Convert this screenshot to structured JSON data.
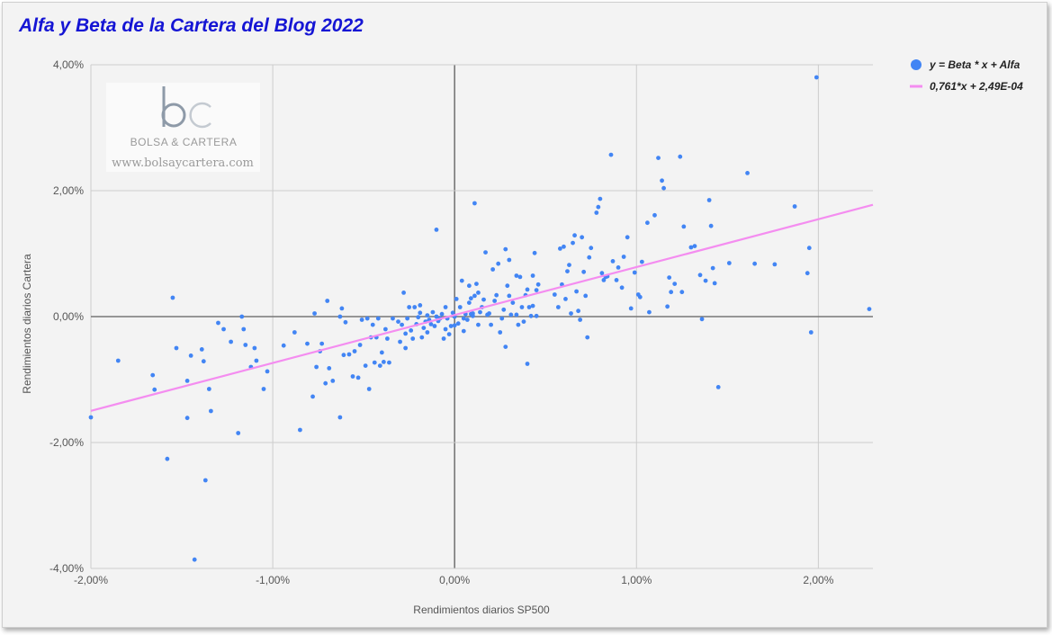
{
  "title": "Alfa y Beta de la Cartera del Blog 2022",
  "watermark": {
    "name": "BOLSA & CARTERA",
    "url": "www.bolsaycartera.com"
  },
  "colors": {
    "title": "#1515d4",
    "points": "#4285f4",
    "trendline": "#f48df0",
    "grid": "#cccccc",
    "zero_axis": "#777777",
    "background": "#f3f3f3"
  },
  "chart_data": {
    "type": "scatter",
    "xlabel": "Rendimientos diarios SP500",
    "ylabel": "Rendimientos diarios Cartera",
    "xlim": [
      -0.02,
      0.023
    ],
    "ylim": [
      -0.04,
      0.04
    ],
    "x_ticks": [
      -0.02,
      -0.01,
      0,
      0.01,
      0.02
    ],
    "x_tick_labels": [
      "-2,00%",
      "-1,00%",
      "0,00%",
      "1,00%",
      "2,00%"
    ],
    "y_ticks": [
      -0.04,
      -0.02,
      0,
      0.02,
      0.04
    ],
    "y_tick_labels": [
      "-4,00%",
      "-2,00%",
      "0,00%",
      "2,00%",
      "4,00%"
    ],
    "grid": true,
    "legend_position": "top-right",
    "series": [
      {
        "name": "y = Beta * x + Alfa",
        "points": [
          [
            -0.02,
            -0.016
          ],
          [
            -0.0185,
            -0.007
          ],
          [
            -0.0166,
            -0.0093
          ],
          [
            -0.0165,
            -0.0116
          ],
          [
            -0.0158,
            -0.0226
          ],
          [
            -0.0155,
            0.003
          ],
          [
            -0.0153,
            -0.005
          ],
          [
            -0.0147,
            -0.0161
          ],
          [
            -0.0147,
            -0.0102
          ],
          [
            -0.0145,
            -0.0062
          ],
          [
            -0.0143,
            -0.0386
          ],
          [
            -0.0139,
            -0.0052
          ],
          [
            -0.0138,
            -0.0071
          ],
          [
            -0.0137,
            -0.026
          ],
          [
            -0.0135,
            -0.0115
          ],
          [
            -0.0134,
            -0.015
          ],
          [
            -0.013,
            -0.001
          ],
          [
            -0.0127,
            -0.002
          ],
          [
            -0.0123,
            -0.004
          ],
          [
            -0.0119,
            -0.0185
          ],
          [
            -0.0117,
            0.0
          ],
          [
            -0.0116,
            -0.002
          ],
          [
            -0.0115,
            -0.0045
          ],
          [
            -0.0112,
            -0.008
          ],
          [
            -0.011,
            -0.005
          ],
          [
            -0.0109,
            -0.007
          ],
          [
            -0.0105,
            -0.0115
          ],
          [
            -0.0103,
            -0.0087
          ],
          [
            -0.0094,
            -0.0046
          ],
          [
            -0.0088,
            -0.0025
          ],
          [
            -0.0085,
            -0.018
          ],
          [
            -0.0081,
            -0.0043
          ],
          [
            -0.0078,
            -0.0127
          ],
          [
            -0.0077,
            0.0005
          ],
          [
            -0.0076,
            -0.008
          ],
          [
            -0.0074,
            -0.0055
          ],
          [
            -0.0073,
            -0.0043
          ],
          [
            -0.0071,
            -0.0106
          ],
          [
            -0.007,
            0.0025
          ],
          [
            -0.0069,
            -0.0082
          ],
          [
            -0.0067,
            -0.0102
          ],
          [
            -0.0063,
            -0.016
          ],
          [
            -0.0063,
            0.0
          ],
          [
            -0.0062,
            0.0013
          ],
          [
            -0.0061,
            -0.0061
          ],
          [
            -0.006,
            -0.0009
          ],
          [
            -0.0058,
            -0.006
          ],
          [
            -0.0056,
            -0.0095
          ],
          [
            -0.0055,
            -0.0055
          ],
          [
            -0.0053,
            -0.0097
          ],
          [
            -0.0052,
            -0.0045
          ],
          [
            -0.0051,
            -0.0005
          ],
          [
            -0.0049,
            -0.0078
          ],
          [
            -0.0048,
            -0.0003
          ],
          [
            -0.0047,
            -0.0115
          ],
          [
            -0.0046,
            -0.0033
          ],
          [
            -0.0045,
            -0.0013
          ],
          [
            -0.0044,
            -0.0073
          ],
          [
            -0.0043,
            -0.0033
          ],
          [
            -0.0042,
            -0.0003
          ],
          [
            -0.0041,
            -0.0078
          ],
          [
            -0.004,
            -0.0057
          ],
          [
            -0.0039,
            -0.0072
          ],
          [
            -0.0038,
            -0.002
          ],
          [
            -0.0037,
            -0.0035
          ],
          [
            -0.0036,
            -0.0073
          ],
          [
            -0.0034,
            -0.0003
          ],
          [
            -0.0031,
            -0.0008
          ],
          [
            -0.003,
            -0.004
          ],
          [
            -0.0029,
            -0.0013
          ],
          [
            -0.0028,
            0.0038
          ],
          [
            -0.0027,
            -0.0027
          ],
          [
            -0.0027,
            -0.005
          ],
          [
            -0.0026,
            -0.0003
          ],
          [
            -0.0025,
            0.0015
          ],
          [
            -0.0024,
            -0.0022
          ],
          [
            -0.0023,
            -0.0035
          ],
          [
            -0.0022,
            0.0015
          ],
          [
            -0.0021,
            -0.0012
          ],
          [
            -0.002,
            -0.0001
          ],
          [
            -0.0019,
            0.0018
          ],
          [
            -0.0019,
            0.0006
          ],
          [
            -0.0018,
            -0.0033
          ],
          [
            -0.0017,
            -0.0018
          ],
          [
            -0.0016,
            -0.0008
          ],
          [
            -0.0015,
            0.0002
          ],
          [
            -0.0015,
            -0.0025
          ],
          [
            -0.0014,
            -0.0005
          ],
          [
            -0.0013,
            -0.0012
          ],
          [
            -0.0012,
            0.0007
          ],
          [
            -0.0011,
            -0.0015
          ],
          [
            -0.001,
            0.0
          ],
          [
            -0.001,
            0.0138
          ],
          [
            -0.0009,
            -0.0007
          ],
          [
            -0.0008,
            -0.0003
          ],
          [
            -0.0007,
            0.0004
          ],
          [
            -0.0006,
            -0.0035
          ],
          [
            -0.0005,
            0.0015
          ],
          [
            -0.0005,
            -0.002
          ],
          [
            -0.0004,
            -0.0003
          ],
          [
            -0.0003,
            -0.0028
          ],
          [
            -0.0002,
            -0.0015
          ],
          [
            -0.0001,
            0.0006
          ],
          [
            0.0,
            -0.0014
          ],
          [
            0.0,
            0.0
          ],
          [
            0.0001,
            0.0028
          ],
          [
            0.0002,
            -0.0011
          ],
          [
            0.0003,
            0.0015
          ],
          [
            0.0004,
            0.0057
          ],
          [
            0.0005,
            -0.0003
          ],
          [
            0.0005,
            -0.0023
          ],
          [
            0.0006,
            0.0004
          ],
          [
            0.0007,
            -0.0005
          ],
          [
            0.0008,
            0.0022
          ],
          [
            0.0008,
            0.0049
          ],
          [
            0.0009,
            0.0004
          ],
          [
            0.0009,
            0.0029
          ],
          [
            0.001,
            0.0001
          ],
          [
            0.001,
            0.0005
          ],
          [
            0.0011,
            0.0033
          ],
          [
            0.0011,
            0.018
          ],
          [
            0.0012,
            0.0052
          ],
          [
            0.0013,
            -0.0013
          ],
          [
            0.0013,
            0.0038
          ],
          [
            0.0014,
            0.0007
          ],
          [
            0.0015,
            0.0015
          ],
          [
            0.0016,
            0.0027
          ],
          [
            0.0017,
            0.0102
          ],
          [
            0.0018,
            0.0003
          ],
          [
            0.0019,
            0.0005
          ],
          [
            0.002,
            -0.0013
          ],
          [
            0.0021,
            0.0075
          ],
          [
            0.0022,
            0.0025
          ],
          [
            0.0023,
            0.0034
          ],
          [
            0.0024,
            0.0084
          ],
          [
            0.0025,
            -0.0025
          ],
          [
            0.0026,
            -0.0003
          ],
          [
            0.0027,
            0.0011
          ],
          [
            0.0028,
            0.0107
          ],
          [
            0.0028,
            -0.0048
          ],
          [
            0.0029,
            0.0049
          ],
          [
            0.003,
            0.009
          ],
          [
            0.003,
            0.0033
          ],
          [
            0.0031,
            0.0003
          ],
          [
            0.0032,
            0.0022
          ],
          [
            0.0034,
            0.0065
          ],
          [
            0.0034,
            0.0003
          ],
          [
            0.0035,
            -0.0013
          ],
          [
            0.0036,
            0.0063
          ],
          [
            0.0037,
            0.0015
          ],
          [
            0.0038,
            -0.0008
          ],
          [
            0.0039,
            0.0034
          ],
          [
            0.004,
            0.0043
          ],
          [
            0.004,
            -0.0075
          ],
          [
            0.0041,
            0.0015
          ],
          [
            0.0042,
            0.0001
          ],
          [
            0.0043,
            0.0065
          ],
          [
            0.0043,
            0.0017
          ],
          [
            0.0044,
            0.0101
          ],
          [
            0.0045,
            0.0042
          ],
          [
            0.0045,
            0.0001
          ],
          [
            0.0046,
            0.0051
          ],
          [
            0.0055,
            0.0035
          ],
          [
            0.0057,
            0.0015
          ],
          [
            0.0058,
            0.0108
          ],
          [
            0.0059,
            0.0051
          ],
          [
            0.006,
            0.0111
          ],
          [
            0.0061,
            0.0028
          ],
          [
            0.0062,
            0.0072
          ],
          [
            0.0063,
            0.0082
          ],
          [
            0.0064,
            0.0005
          ],
          [
            0.0065,
            0.0117
          ],
          [
            0.0066,
            0.0129
          ],
          [
            0.0067,
            0.004
          ],
          [
            0.0068,
            0.0009
          ],
          [
            0.0069,
            -0.0005
          ],
          [
            0.007,
            0.0126
          ],
          [
            0.0071,
            0.0071
          ],
          [
            0.0072,
            0.0033
          ],
          [
            0.0073,
            -0.0033
          ],
          [
            0.0074,
            0.0094
          ],
          [
            0.0075,
            0.0109
          ],
          [
            0.0078,
            0.0165
          ],
          [
            0.0079,
            0.0174
          ],
          [
            0.008,
            0.0187
          ],
          [
            0.0081,
            0.0069
          ],
          [
            0.0082,
            0.0058
          ],
          [
            0.0083,
            0.0063
          ],
          [
            0.0084,
            0.0064
          ],
          [
            0.0086,
            0.0257
          ],
          [
            0.0087,
            0.0088
          ],
          [
            0.0089,
            0.0058
          ],
          [
            0.009,
            0.0078
          ],
          [
            0.0092,
            0.0046
          ],
          [
            0.0093,
            0.0095
          ],
          [
            0.0095,
            0.0126
          ],
          [
            0.0097,
            0.0013
          ],
          [
            0.0099,
            0.007
          ],
          [
            0.0101,
            0.0035
          ],
          [
            0.0102,
            0.0031
          ],
          [
            0.0103,
            0.0087
          ],
          [
            0.0106,
            0.0149
          ],
          [
            0.0107,
            0.0007
          ],
          [
            0.011,
            0.0161
          ],
          [
            0.0112,
            0.0252
          ],
          [
            0.0114,
            0.0216
          ],
          [
            0.0115,
            0.0204
          ],
          [
            0.0117,
            0.0016
          ],
          [
            0.0118,
            0.0062
          ],
          [
            0.0119,
            0.0039
          ],
          [
            0.0121,
            0.0052
          ],
          [
            0.0124,
            0.0254
          ],
          [
            0.0125,
            0.0039
          ],
          [
            0.0126,
            0.0143
          ],
          [
            0.013,
            0.011
          ],
          [
            0.0132,
            0.0112
          ],
          [
            0.0135,
            0.0066
          ],
          [
            0.0136,
            -0.0004
          ],
          [
            0.0138,
            0.0057
          ],
          [
            0.014,
            0.0185
          ],
          [
            0.0141,
            0.0144
          ],
          [
            0.0142,
            0.0077
          ],
          [
            0.0143,
            0.0053
          ],
          [
            0.0145,
            -0.0112
          ],
          [
            0.0151,
            0.0085
          ],
          [
            0.0161,
            0.0228
          ],
          [
            0.0165,
            0.0084
          ],
          [
            0.0176,
            0.0083
          ],
          [
            0.0187,
            0.0175
          ],
          [
            0.0194,
            0.0069
          ],
          [
            0.0195,
            0.0109
          ],
          [
            0.0196,
            -0.0025
          ],
          [
            0.0199,
            0.038
          ],
          [
            0.0228,
            0.0012
          ]
        ]
      },
      {
        "name": "0,761*x + 2,49E-04",
        "slope": 0.761,
        "intercept": 0.000249
      }
    ]
  }
}
